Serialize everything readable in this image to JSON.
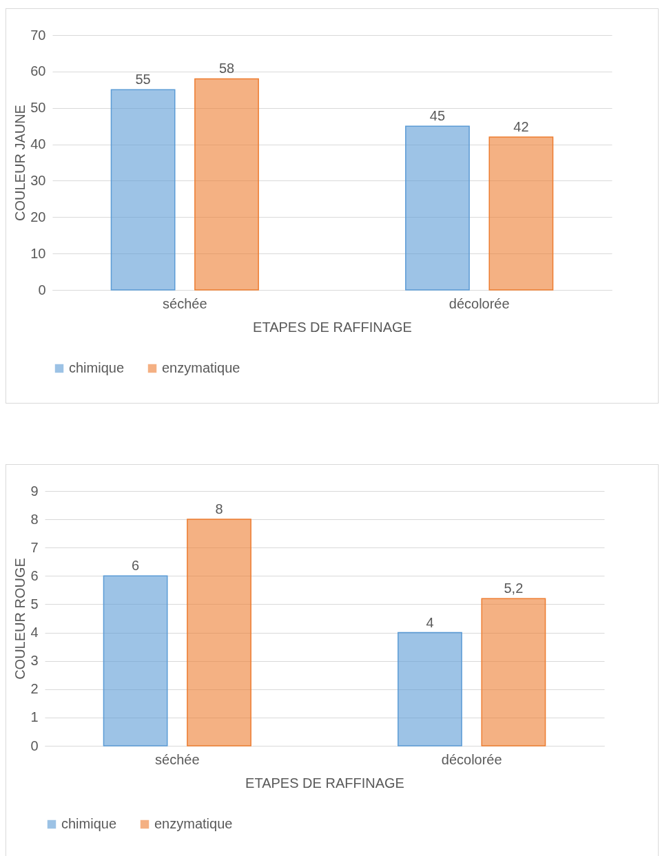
{
  "chart_data": [
    {
      "type": "bar",
      "ylabel": "COULEUR JAUNE",
      "xlabel": "ETAPES DE RAFFINAGE",
      "categories": [
        "séchée",
        "décolorée"
      ],
      "series": [
        {
          "name": "chimique",
          "color": "#5b9bd5",
          "values": [
            55,
            45
          ]
        },
        {
          "name": "enzymatique",
          "color": "#ed7d31",
          "values": [
            58,
            42
          ]
        }
      ],
      "ylim": [
        0,
        70
      ],
      "yticks": [
        0,
        10,
        20,
        30,
        40,
        50,
        60,
        70
      ],
      "grid": "y",
      "legend": "bottom",
      "data_labels": true
    },
    {
      "type": "bar",
      "ylabel": "COULEUR ROUGE",
      "xlabel": "ETAPES DE RAFFINAGE",
      "categories": [
        "séchée",
        "décolorée"
      ],
      "series": [
        {
          "name": "chimique",
          "color": "#5b9bd5",
          "values": [
            6,
            4
          ],
          "value_labels": [
            "6",
            "4"
          ]
        },
        {
          "name": "enzymatique",
          "color": "#ed7d31",
          "values": [
            8,
            5.2
          ],
          "value_labels": [
            "8",
            "5,2"
          ]
        }
      ],
      "ylim": [
        0,
        9
      ],
      "yticks": [
        0,
        1,
        2,
        3,
        4,
        5,
        6,
        7,
        8,
        9
      ],
      "grid": "y",
      "legend": "bottom"
    }
  ]
}
